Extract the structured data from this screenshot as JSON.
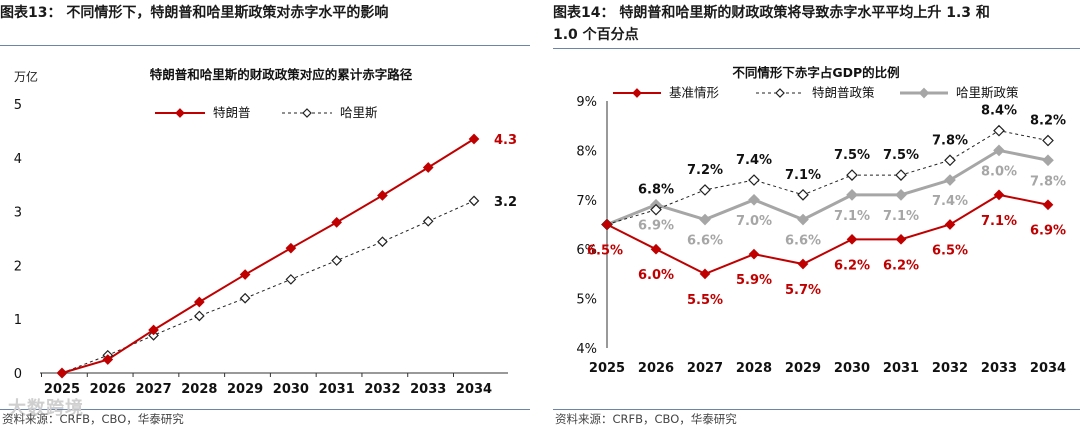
{
  "left": {
    "header": "图表13：  不同情形下，特朗普和哈里斯政策对赤字水平的影响",
    "source": "资料来源：CRFB，CBO，华泰研究",
    "watermark": "大数跨境"
  },
  "right": {
    "header_line1": "图表14：  特朗普和哈里斯的财政政策将导致赤字水平平均上升  1.3  和",
    "header_line2": "1.0 个百分点",
    "source": "资料来源：CRFB，CBO，华泰研究"
  },
  "chart_data": [
    {
      "type": "line",
      "title": "特朗普和哈里斯的财政政策对应的累计赤字路径",
      "ylabel": "万亿",
      "ylim": [
        0,
        5
      ],
      "yticks": [
        0,
        1,
        2,
        3,
        4,
        5
      ],
      "categories": [
        "2025",
        "2026",
        "2027",
        "2028",
        "2029",
        "2030",
        "2031",
        "2032",
        "2033",
        "2034"
      ],
      "series": [
        {
          "name": "特朗普",
          "color": "#c00000",
          "marker": "diamond-filled",
          "values": [
            0.0,
            0.25,
            0.8,
            1.32,
            1.83,
            2.32,
            2.8,
            3.3,
            3.82,
            4.35
          ],
          "end_label": "4.3"
        },
        {
          "name": "哈里斯",
          "color": "#222222",
          "marker": "diamond-open",
          "values": [
            0.0,
            0.33,
            0.7,
            1.06,
            1.39,
            1.74,
            2.09,
            2.44,
            2.82,
            3.2
          ],
          "end_label": "3.2"
        }
      ]
    },
    {
      "type": "line",
      "title": "不同情形下赤字占GDP的比例",
      "ylim": [
        4,
        9
      ],
      "yticks": [
        "4%",
        "5%",
        "6%",
        "7%",
        "8%",
        "9%"
      ],
      "categories": [
        "2025",
        "2026",
        "2027",
        "2028",
        "2029",
        "2030",
        "2031",
        "2032",
        "2033",
        "2034"
      ],
      "series": [
        {
          "name": "基准情形",
          "color": "#c00000",
          "marker": "diamond-filled",
          "values": [
            6.5,
            6.0,
            5.5,
            5.9,
            5.7,
            6.2,
            6.2,
            6.5,
            7.1,
            6.9
          ],
          "labels": [
            "6.5%",
            "6.0%",
            "5.5%",
            "5.9%",
            "5.7%",
            "6.2%",
            "6.2%",
            "6.5%",
            "7.1%",
            "6.9%"
          ]
        },
        {
          "name": "特朗普政策",
          "color": "#222222",
          "marker": "diamond-open",
          "values": [
            6.5,
            6.8,
            7.2,
            7.4,
            7.1,
            7.5,
            7.5,
            7.8,
            8.4,
            8.2
          ],
          "labels": [
            "",
            "6.8%",
            "7.2%",
            "7.4%",
            "7.1%",
            "7.5%",
            "7.5%",
            "7.8%",
            "8.4%",
            "8.2%"
          ]
        },
        {
          "name": "哈里斯政策",
          "color": "#a6a6a6",
          "marker": "diamond-filled",
          "values": [
            6.5,
            6.9,
            6.6,
            7.0,
            6.6,
            7.1,
            7.1,
            7.4,
            8.0,
            7.8
          ],
          "labels": [
            "",
            "6.9%",
            "6.6%",
            "7.0%",
            "6.6%",
            "7.1%",
            "7.1%",
            "7.4%",
            "8.0%",
            "7.8%"
          ]
        }
      ]
    }
  ]
}
